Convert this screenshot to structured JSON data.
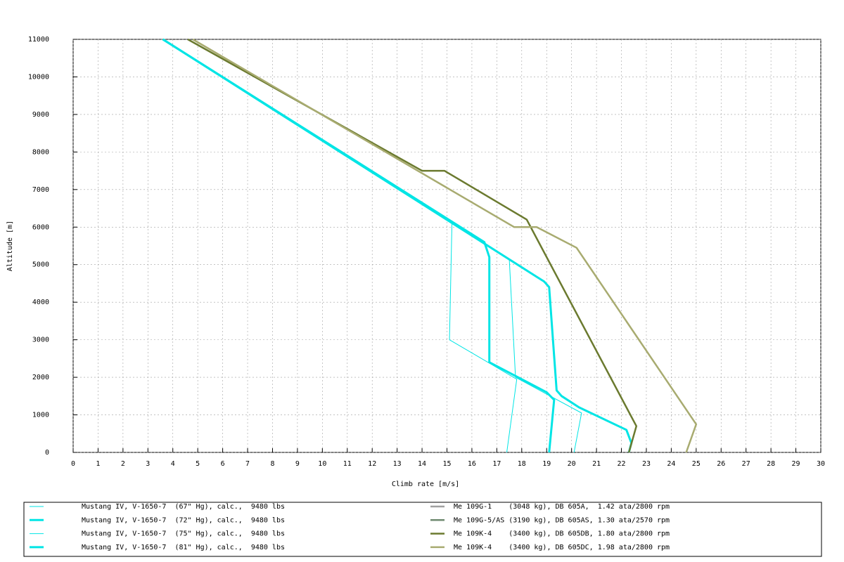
{
  "chart_data": {
    "type": "line",
    "xlabel": "Climb rate [m/s]",
    "ylabel": "Altitude [m]",
    "xlim": [
      0,
      30
    ],
    "ylim": [
      0,
      11000
    ],
    "xticks": [
      0,
      1,
      2,
      3,
      4,
      5,
      6,
      7,
      8,
      9,
      10,
      11,
      12,
      13,
      14,
      15,
      16,
      17,
      18,
      19,
      20,
      21,
      22,
      23,
      24,
      25,
      26,
      27,
      28,
      29,
      30
    ],
    "yticks": [
      0,
      1000,
      2000,
      3000,
      4000,
      5000,
      6000,
      7000,
      8000,
      9000,
      10000,
      11000
    ],
    "grid": true,
    "series": [
      {
        "name": "Mustang IV, V-1650-7  (67\" Hg), calc.,  9480 lbs",
        "color": "#00e5e5",
        "width": 1,
        "x": [
          17.4,
          17.8,
          15.1,
          15.2,
          3.6
        ],
        "y": [
          0,
          1950,
          3000,
          6100,
          11000
        ]
      },
      {
        "name": "Mustang IV, V-1650-7  (72\" Hg), calc.,  9480 lbs",
        "color": "#00e5e5",
        "width": 3,
        "x": [
          19.1,
          19.3,
          19.0,
          16.7,
          16.7,
          16.5,
          3.6
        ],
        "y": [
          0,
          1400,
          1600,
          2400,
          5200,
          5600,
          11000
        ]
      },
      {
        "name": "Mustang IV, V-1650-7  (75\" Hg), calc.,  9480 lbs",
        "color": "#00e5e5",
        "width": 1,
        "x": [
          20.1,
          20.4,
          17.75,
          17.5,
          3.6
        ],
        "y": [
          0,
          1050,
          2000,
          5150,
          11000
        ]
      },
      {
        "name": "Mustang IV, V-1650-7  (81\" Hg), calc.,  9480 lbs",
        "color": "#00e5e5",
        "width": 3,
        "x": [
          22.3,
          22.4,
          22.2,
          20.3,
          19.6,
          19.4,
          19.1,
          18.9,
          3.6
        ],
        "y": [
          0,
          250,
          600,
          1200,
          1500,
          1650,
          4400,
          4550,
          11000
        ]
      },
      {
        "name": "Me 109G-1    (3048 kg), DB 605A,  1.42 ata/2800 rpm",
        "color": "#a0a0a0",
        "width": 2.5,
        "x": [],
        "y": []
      },
      {
        "name": "Me 109G-5/AS (3190 kg), DB 605AS, 1.30 ata/2570 rpm",
        "color": "#6f8a70",
        "width": 2.5,
        "x": [],
        "y": []
      },
      {
        "name": "Me 109K-4    (3400 kg), DB 605DB, 1.80 ata/2800 rpm",
        "color": "#6b7a2f",
        "width": 2.5,
        "x": [
          22.3,
          22.6,
          18.2,
          14.9,
          14.0,
          4.6
        ],
        "y": [
          0,
          700,
          6200,
          7500,
          7500,
          11000
        ]
      },
      {
        "name": "Me 109K-4    (3400 kg), DB 605DC, 1.98 ata/2800 rpm",
        "color": "#a8ab70",
        "width": 2.5,
        "x": [
          24.6,
          25.0,
          20.2,
          18.6,
          17.7,
          4.8
        ],
        "y": [
          0,
          750,
          5450,
          6000,
          6000,
          11000
        ]
      }
    ]
  }
}
